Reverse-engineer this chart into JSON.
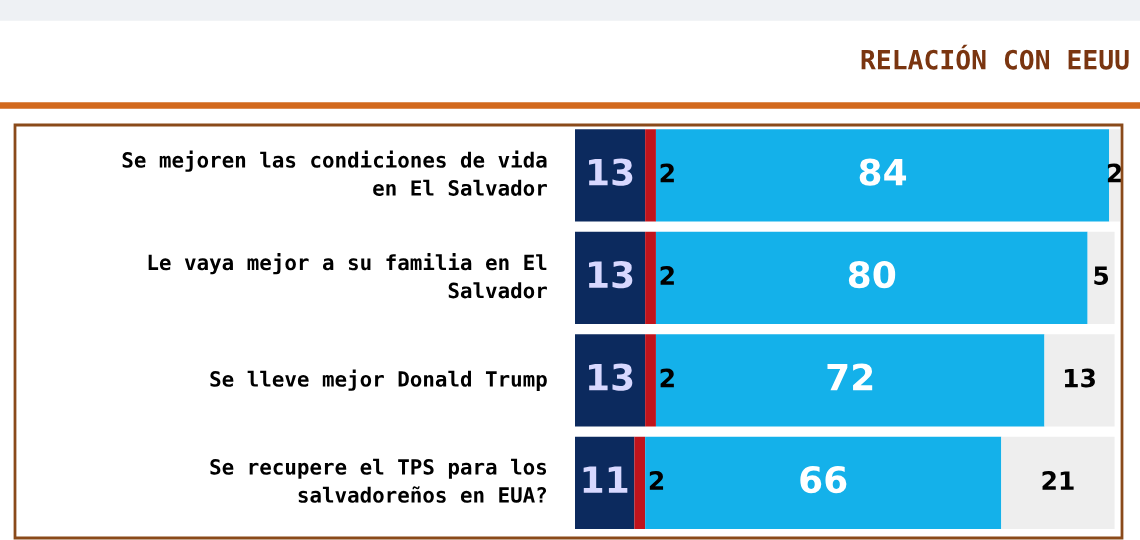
{
  "chart_data": {
    "type": "bar",
    "orientation": "horizontal",
    "stacked": true,
    "title": "RELACIÓN CON EEUU",
    "categories": [
      "Se mejoren las condiciones de vida en El Salvador",
      "Le vaya mejor a su familia en El Salvador",
      "Se lleve mejor Donald Trump",
      "Se recupere el TPS para los salvadoreños en EUA?"
    ],
    "series": [
      {
        "color": "#0c2a5e",
        "values": [
          13,
          13,
          13,
          11
        ]
      },
      {
        "color": "#c0141c",
        "values": [
          2,
          2,
          2,
          2
        ]
      },
      {
        "color": "#14b1ea",
        "values": [
          84,
          80,
          72,
          66
        ]
      },
      {
        "color": "#eeeeee",
        "values": [
          2,
          5,
          13,
          21
        ]
      }
    ],
    "data_labels": true,
    "legend": false,
    "grid": false
  }
}
